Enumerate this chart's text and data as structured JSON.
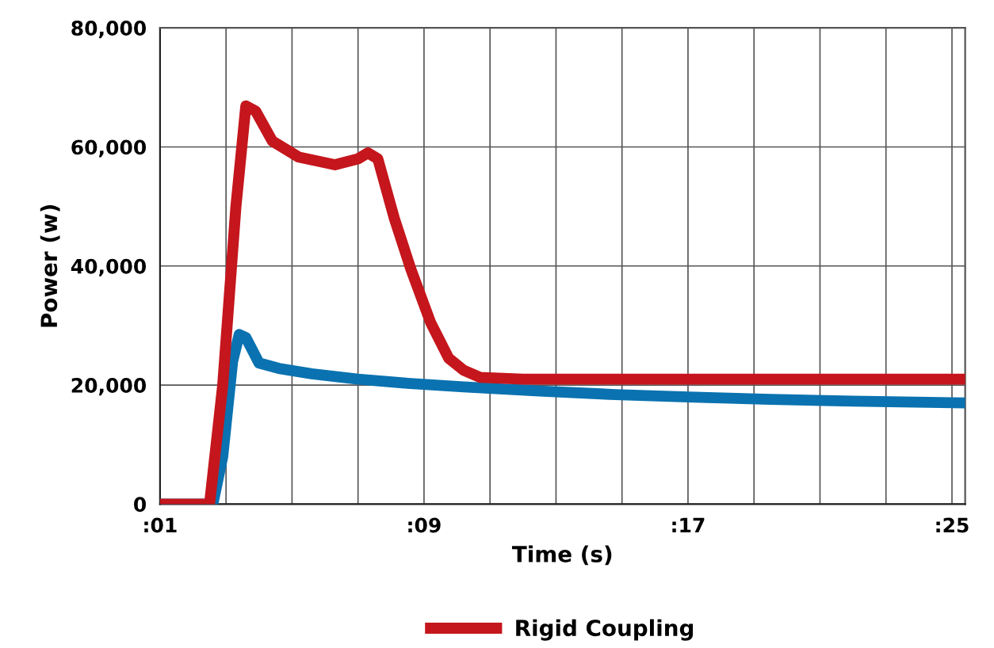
{
  "chart_data": {
    "type": "line",
    "xlabel": "Time (s)",
    "ylabel": "Power (w)",
    "xlim": [
      1,
      25.4
    ],
    "ylim": [
      0,
      80000
    ],
    "xticks": [
      {
        "value": 1,
        "label": ":01"
      },
      {
        "value": 3,
        "label": null
      },
      {
        "value": 5,
        "label": null
      },
      {
        "value": 7,
        "label": null
      },
      {
        "value": 9,
        "label": ":09"
      },
      {
        "value": 11,
        "label": null
      },
      {
        "value": 13,
        "label": null
      },
      {
        "value": 15,
        "label": null
      },
      {
        "value": 17,
        "label": ":17"
      },
      {
        "value": 19,
        "label": null
      },
      {
        "value": 21,
        "label": null
      },
      {
        "value": 23,
        "label": null
      },
      {
        "value": 25,
        "label": ":25"
      }
    ],
    "yticks": [
      {
        "value": 0,
        "label": "0"
      },
      {
        "value": 20000,
        "label": "20,000"
      },
      {
        "value": 40000,
        "label": "40,000"
      },
      {
        "value": 60000,
        "label": "60,000"
      },
      {
        "value": 80000,
        "label": "80,000"
      }
    ],
    "grid": true,
    "legend": "bottom",
    "marker": "none",
    "line_style": "solid",
    "series": [
      {
        "color": "#0a72b0",
        "x": [
          1,
          2.6,
          2.9,
          3.2,
          3.4,
          3.6,
          4.0,
          4.6,
          5.6,
          7.0,
          8.5,
          10.2,
          12.5,
          14.8,
          17.0,
          19.5,
          22.0,
          25.4
        ],
        "values": [
          0,
          0,
          8000,
          24000,
          28500,
          28000,
          23700,
          22800,
          21900,
          21000,
          20300,
          19700,
          19000,
          18400,
          18000,
          17600,
          17300,
          17000
        ]
      },
      {
        "name": "Rigid Coupling",
        "color": "#c4161c",
        "x": [
          1,
          2.5,
          2.9,
          3.3,
          3.6,
          3.9,
          4.4,
          5.2,
          6.3,
          7.0,
          7.3,
          7.6,
          8.1,
          8.6,
          9.2,
          9.75,
          10.2,
          10.7,
          12.0,
          25.4
        ],
        "values": [
          0,
          0,
          20000,
          50000,
          66900,
          66000,
          61000,
          58300,
          57000,
          58000,
          59000,
          58000,
          48000,
          39500,
          30500,
          24500,
          22500,
          21300,
          21000,
          21000
        ]
      }
    ]
  }
}
